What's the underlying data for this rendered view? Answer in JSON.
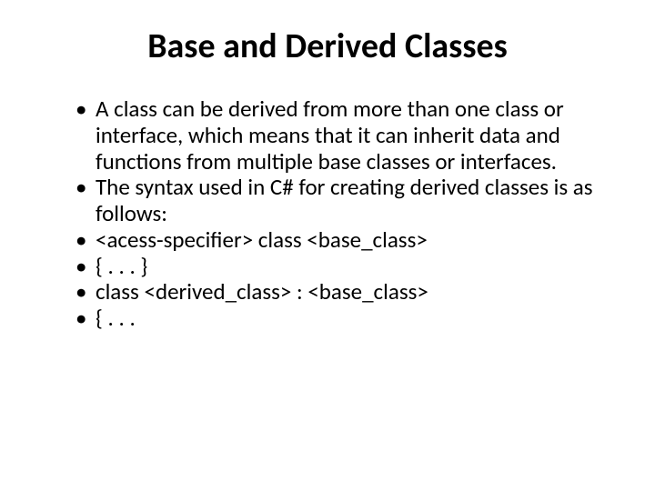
{
  "slide": {
    "title": "Base and Derived Classes",
    "title_fontsize": 38,
    "title_fontweight": 700,
    "title_color": "#000000",
    "background_color": "#ffffff",
    "body_fontsize": 25,
    "body_color": "#000000",
    "bullets": [
      "A class can be derived from more than one class or interface, which means that it can inherit data and functions from multiple base classes or interfaces.",
      "The syntax used in C# for creating derived classes is as follows:",
      "<acess-specifier> class <base_class>",
      " { . . . }",
      "class <derived_class> : <base_class>",
      "{ . . ."
    ]
  }
}
